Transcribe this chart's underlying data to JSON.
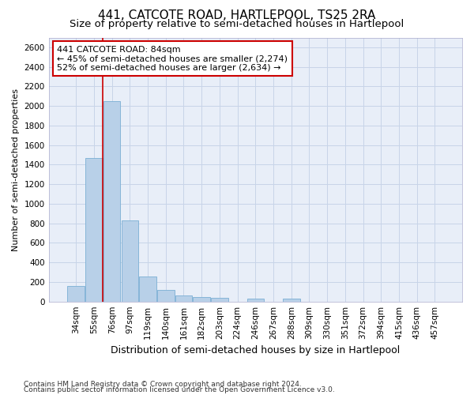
{
  "title": "441, CATCOTE ROAD, HARTLEPOOL, TS25 2RA",
  "subtitle": "Size of property relative to semi-detached houses in Hartlepool",
  "xlabel": "Distribution of semi-detached houses by size in Hartlepool",
  "ylabel": "Number of semi-detached properties",
  "footer_line1": "Contains HM Land Registry data © Crown copyright and database right 2024.",
  "footer_line2": "Contains public sector information licensed under the Open Government Licence v3.0.",
  "categories": [
    "34sqm",
    "55sqm",
    "76sqm",
    "97sqm",
    "119sqm",
    "140sqm",
    "161sqm",
    "182sqm",
    "203sqm",
    "224sqm",
    "246sqm",
    "267sqm",
    "288sqm",
    "309sqm",
    "330sqm",
    "351sqm",
    "372sqm",
    "394sqm",
    "415sqm",
    "436sqm",
    "457sqm"
  ],
  "values": [
    155,
    1470,
    2050,
    830,
    255,
    120,
    63,
    43,
    36,
    0,
    30,
    0,
    28,
    0,
    0,
    0,
    0,
    0,
    0,
    0,
    0
  ],
  "bar_color": "#b8d0e8",
  "bar_edge_color": "#7bafd4",
  "grid_color": "#c8d4e8",
  "bg_color": "#e8eef8",
  "annotation_box_edgecolor": "#cc0000",
  "annotation_line1": "441 CATCOTE ROAD: 84sqm",
  "annotation_line2": "← 45% of semi-detached houses are smaller (2,274)",
  "annotation_line3": "52% of semi-detached houses are larger (2,634) →",
  "ylim": [
    0,
    2700
  ],
  "yticks": [
    0,
    200,
    400,
    600,
    800,
    1000,
    1200,
    1400,
    1600,
    1800,
    2000,
    2200,
    2400,
    2600
  ],
  "title_fontsize": 11,
  "subtitle_fontsize": 9.5,
  "xlabel_fontsize": 9,
  "ylabel_fontsize": 8,
  "tick_fontsize": 7.5,
  "annotation_fontsize": 8,
  "footer_fontsize": 6.5
}
